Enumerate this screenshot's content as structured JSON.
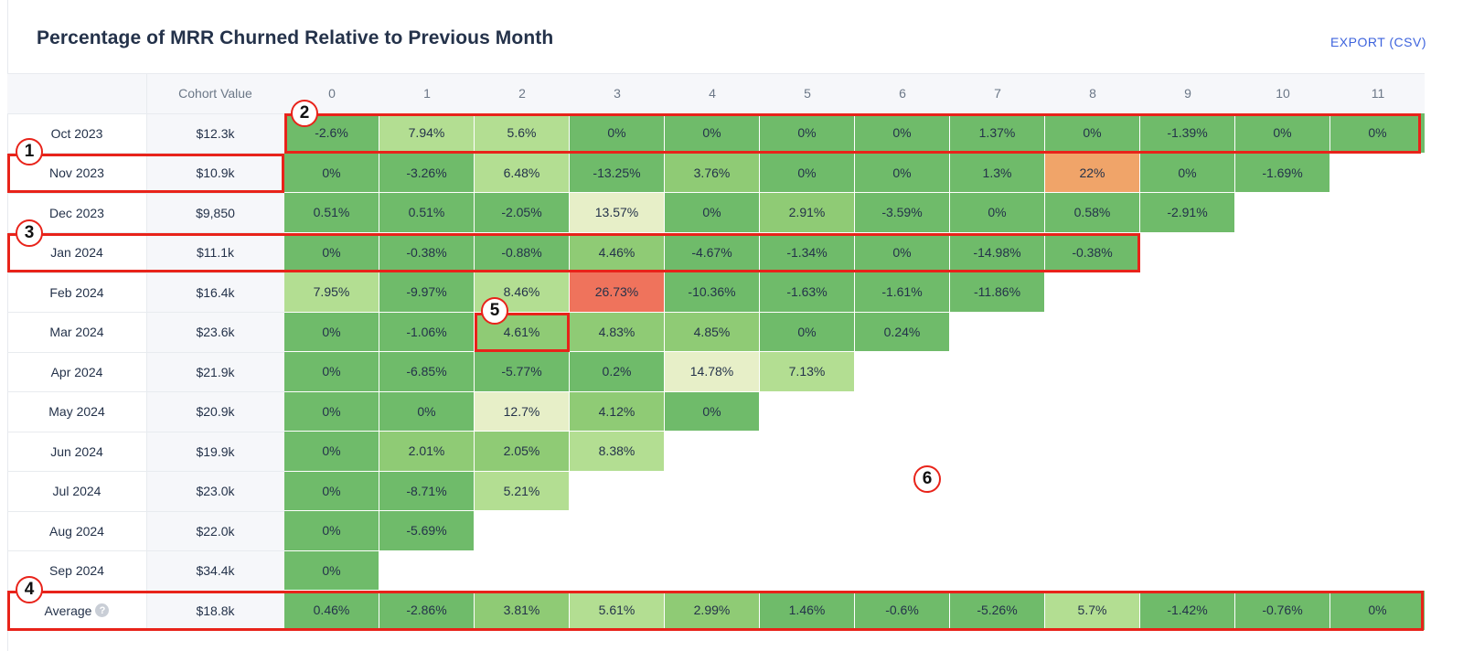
{
  "header": {
    "title": "Percentage of MRR Churned Relative to Previous Month",
    "export_label": "EXPORT (CSV)"
  },
  "chart_data": {
    "type": "heatmap",
    "title": "Percentage of MRR Churned Relative to Previous Month",
    "cohort_value_header": "Cohort Value",
    "columns": [
      "0",
      "1",
      "2",
      "3",
      "4",
      "5",
      "6",
      "7",
      "8",
      "9",
      "10",
      "11"
    ],
    "rows": [
      {
        "label": "Oct 2023",
        "value": "$12.3k",
        "cells": [
          "-2.6%",
          "7.94%",
          "5.6%",
          "0%",
          "0%",
          "0%",
          "0%",
          "1.37%",
          "0%",
          "-1.39%",
          "0%",
          "0%"
        ]
      },
      {
        "label": "Nov 2023",
        "value": "$10.9k",
        "cells": [
          "0%",
          "-3.26%",
          "6.48%",
          "-13.25%",
          "3.76%",
          "0%",
          "0%",
          "1.3%",
          "22%",
          "0%",
          "-1.69%"
        ]
      },
      {
        "label": "Dec 2023",
        "value": "$9,850",
        "cells": [
          "0.51%",
          "0.51%",
          "-2.05%",
          "13.57%",
          "0%",
          "2.91%",
          "-3.59%",
          "0%",
          "0.58%",
          "-2.91%"
        ]
      },
      {
        "label": "Jan 2024",
        "value": "$11.1k",
        "cells": [
          "0%",
          "-0.38%",
          "-0.88%",
          "4.46%",
          "-4.67%",
          "-1.34%",
          "0%",
          "-14.98%",
          "-0.38%"
        ]
      },
      {
        "label": "Feb 2024",
        "value": "$16.4k",
        "cells": [
          "7.95%",
          "-9.97%",
          "8.46%",
          "26.73%",
          "-10.36%",
          "-1.63%",
          "-1.61%",
          "-11.86%"
        ]
      },
      {
        "label": "Mar 2024",
        "value": "$23.6k",
        "cells": [
          "0%",
          "-1.06%",
          "4.61%",
          "4.83%",
          "4.85%",
          "0%",
          "0.24%"
        ]
      },
      {
        "label": "Apr 2024",
        "value": "$21.9k",
        "cells": [
          "0%",
          "-6.85%",
          "-5.77%",
          "0.2%",
          "14.78%",
          "7.13%"
        ]
      },
      {
        "label": "May 2024",
        "value": "$20.9k",
        "cells": [
          "0%",
          "0%",
          "12.7%",
          "4.12%",
          "0%"
        ]
      },
      {
        "label": "Jun 2024",
        "value": "$19.9k",
        "cells": [
          "0%",
          "2.01%",
          "2.05%",
          "8.38%"
        ]
      },
      {
        "label": "Jul 2024",
        "value": "$23.0k",
        "cells": [
          "0%",
          "-8.71%",
          "5.21%"
        ]
      },
      {
        "label": "Aug 2024",
        "value": "$22.0k",
        "cells": [
          "0%",
          "-5.69%"
        ]
      },
      {
        "label": "Sep 2024",
        "value": "$34.4k",
        "cells": [
          "0%"
        ]
      }
    ],
    "average": {
      "label": "Average",
      "value": "$18.8k",
      "cells": [
        "0.46%",
        "-2.86%",
        "3.81%",
        "5.61%",
        "2.99%",
        "1.46%",
        "-0.6%",
        "-5.26%",
        "5.7%",
        "-1.42%",
        "-0.76%",
        "0%"
      ]
    },
    "colors": {
      "low": "#6fbb6a",
      "mid_green": "#8fcb75",
      "light_green": "#b3de92",
      "pale": "#e7efc8",
      "orange": "#f0a469",
      "red": "#ef735c"
    }
  },
  "annotations": [
    "1",
    "2",
    "3",
    "4",
    "5",
    "6"
  ]
}
